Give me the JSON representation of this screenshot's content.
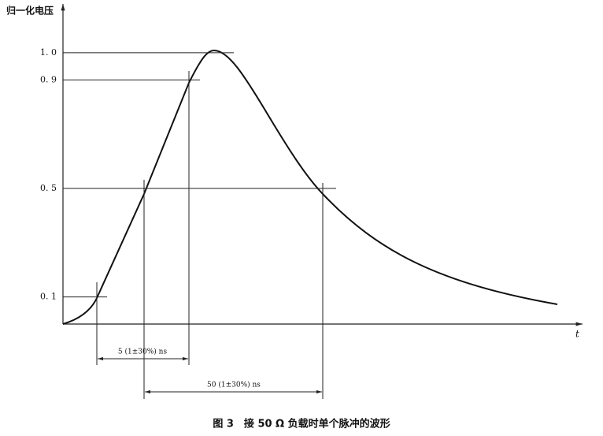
{
  "chart_data": {
    "type": "line",
    "y_label": "归一化电压",
    "x_label": "t",
    "ylim": [
      0,
      1.18
    ],
    "yticks": [
      {
        "value": 0.1,
        "label": "0. 1"
      },
      {
        "value": 0.5,
        "label": "0. 5"
      },
      {
        "value": 0.9,
        "label": "0. 9"
      },
      {
        "value": 1.0,
        "label": "1. 0"
      }
    ],
    "annotations": [
      "5 (1±30%) ns",
      "50 (1±30%) ns"
    ],
    "caption": "图 3　接 50 Ω 负载时单个脉冲的波形"
  }
}
